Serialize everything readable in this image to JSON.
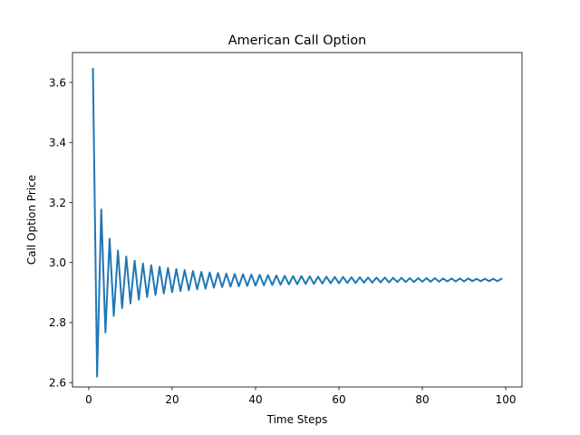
{
  "chart_data": {
    "type": "line",
    "title": "American Call Option",
    "xlabel": "Time Steps",
    "ylabel": "Call Option Price",
    "xlim": [
      -3.9,
      103.9
    ],
    "ylim": [
      2.5855,
      3.6995
    ],
    "xticks": [
      {
        "value": 0,
        "label": "0"
      },
      {
        "value": 20,
        "label": "20"
      },
      {
        "value": 40,
        "label": "40"
      },
      {
        "value": 60,
        "label": "60"
      },
      {
        "value": 80,
        "label": "80"
      },
      {
        "value": 100,
        "label": "100"
      }
    ],
    "yticks": [
      {
        "value": 2.6,
        "label": "2.6"
      },
      {
        "value": 2.8,
        "label": "2.8"
      },
      {
        "value": 3.0,
        "label": "3.0"
      },
      {
        "value": 3.2,
        "label": "3.2"
      },
      {
        "value": 3.4,
        "label": "3.4"
      },
      {
        "value": 3.6,
        "label": "3.6"
      }
    ],
    "grid": false,
    "legend": "none",
    "series": [
      {
        "color": "#1f77b4",
        "x": [
          1,
          2,
          3,
          4,
          5,
          6,
          7,
          8,
          9,
          10,
          11,
          12,
          13,
          14,
          15,
          16,
          17,
          18,
          19,
          20,
          21,
          22,
          23,
          24,
          25,
          26,
          27,
          28,
          29,
          30,
          31,
          32,
          33,
          34,
          35,
          36,
          37,
          38,
          39,
          40,
          41,
          42,
          43,
          44,
          45,
          46,
          47,
          48,
          49,
          50,
          51,
          52,
          53,
          54,
          55,
          56,
          57,
          58,
          59,
          60,
          61,
          62,
          63,
          64,
          65,
          66,
          67,
          68,
          69,
          70,
          71,
          72,
          73,
          74,
          75,
          76,
          77,
          78,
          79,
          80,
          81,
          82,
          83,
          84,
          85,
          86,
          87,
          88,
          89,
          90,
          91,
          92,
          93,
          94,
          95,
          96,
          97,
          98,
          99
        ],
        "y": [
          3.645,
          2.62,
          3.177,
          2.767,
          3.079,
          2.822,
          3.04,
          2.848,
          3.02,
          2.864,
          3.006,
          2.876,
          2.997,
          2.885,
          2.991,
          2.892,
          2.986,
          2.897,
          2.982,
          2.901,
          2.978,
          2.905,
          2.975,
          2.908,
          2.972,
          2.911,
          2.969,
          2.913,
          2.967,
          2.916,
          2.965,
          2.918,
          2.963,
          2.92,
          2.962,
          2.921,
          2.961,
          2.922,
          2.96,
          2.923,
          2.959,
          2.924,
          2.958,
          2.925,
          2.957,
          2.926,
          2.956,
          2.927,
          2.955,
          2.928,
          2.955,
          2.929,
          2.954,
          2.929,
          2.953,
          2.93,
          2.953,
          2.931,
          2.952,
          2.931,
          2.952,
          2.932,
          2.951,
          2.932,
          2.951,
          2.933,
          2.95,
          2.933,
          2.95,
          2.934,
          2.95,
          2.934,
          2.949,
          2.935,
          2.949,
          2.935,
          2.948,
          2.935,
          2.948,
          2.936,
          2.948,
          2.936,
          2.948,
          2.936,
          2.947,
          2.937,
          2.947,
          2.937,
          2.947,
          2.937,
          2.947,
          2.938,
          2.946,
          2.938,
          2.946,
          2.938,
          2.946,
          2.938,
          2.946
        ]
      }
    ]
  }
}
